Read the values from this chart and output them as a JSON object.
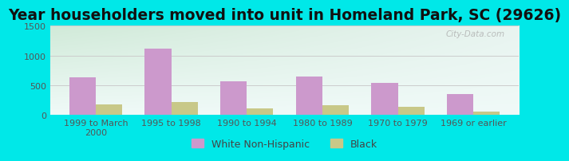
{
  "title": "Year householders moved into unit in Homeland Park, SC (29626)",
  "categories": [
    "1999 to March\n2000",
    "1995 to 1998",
    "1990 to 1994",
    "1980 to 1989",
    "1970 to 1979",
    "1969 or earlier"
  ],
  "white_values": [
    635,
    1120,
    575,
    645,
    545,
    355
  ],
  "black_values": [
    175,
    225,
    115,
    165,
    135,
    55
  ],
  "white_color": "#cc99cc",
  "black_color": "#c8c888",
  "ylim": [
    0,
    1500
  ],
  "yticks": [
    0,
    500,
    1000,
    1500
  ],
  "background_outer": "#00e8e8",
  "bg_top_left": "#d0ead8",
  "bg_top_right": "#e8f4f0",
  "bg_bottom": "#f0faf8",
  "grid_color": "#cccccc",
  "title_fontsize": 13.5,
  "tick_fontsize": 8,
  "legend_fontsize": 9,
  "bar_width": 0.35,
  "watermark": "City-Data.com"
}
